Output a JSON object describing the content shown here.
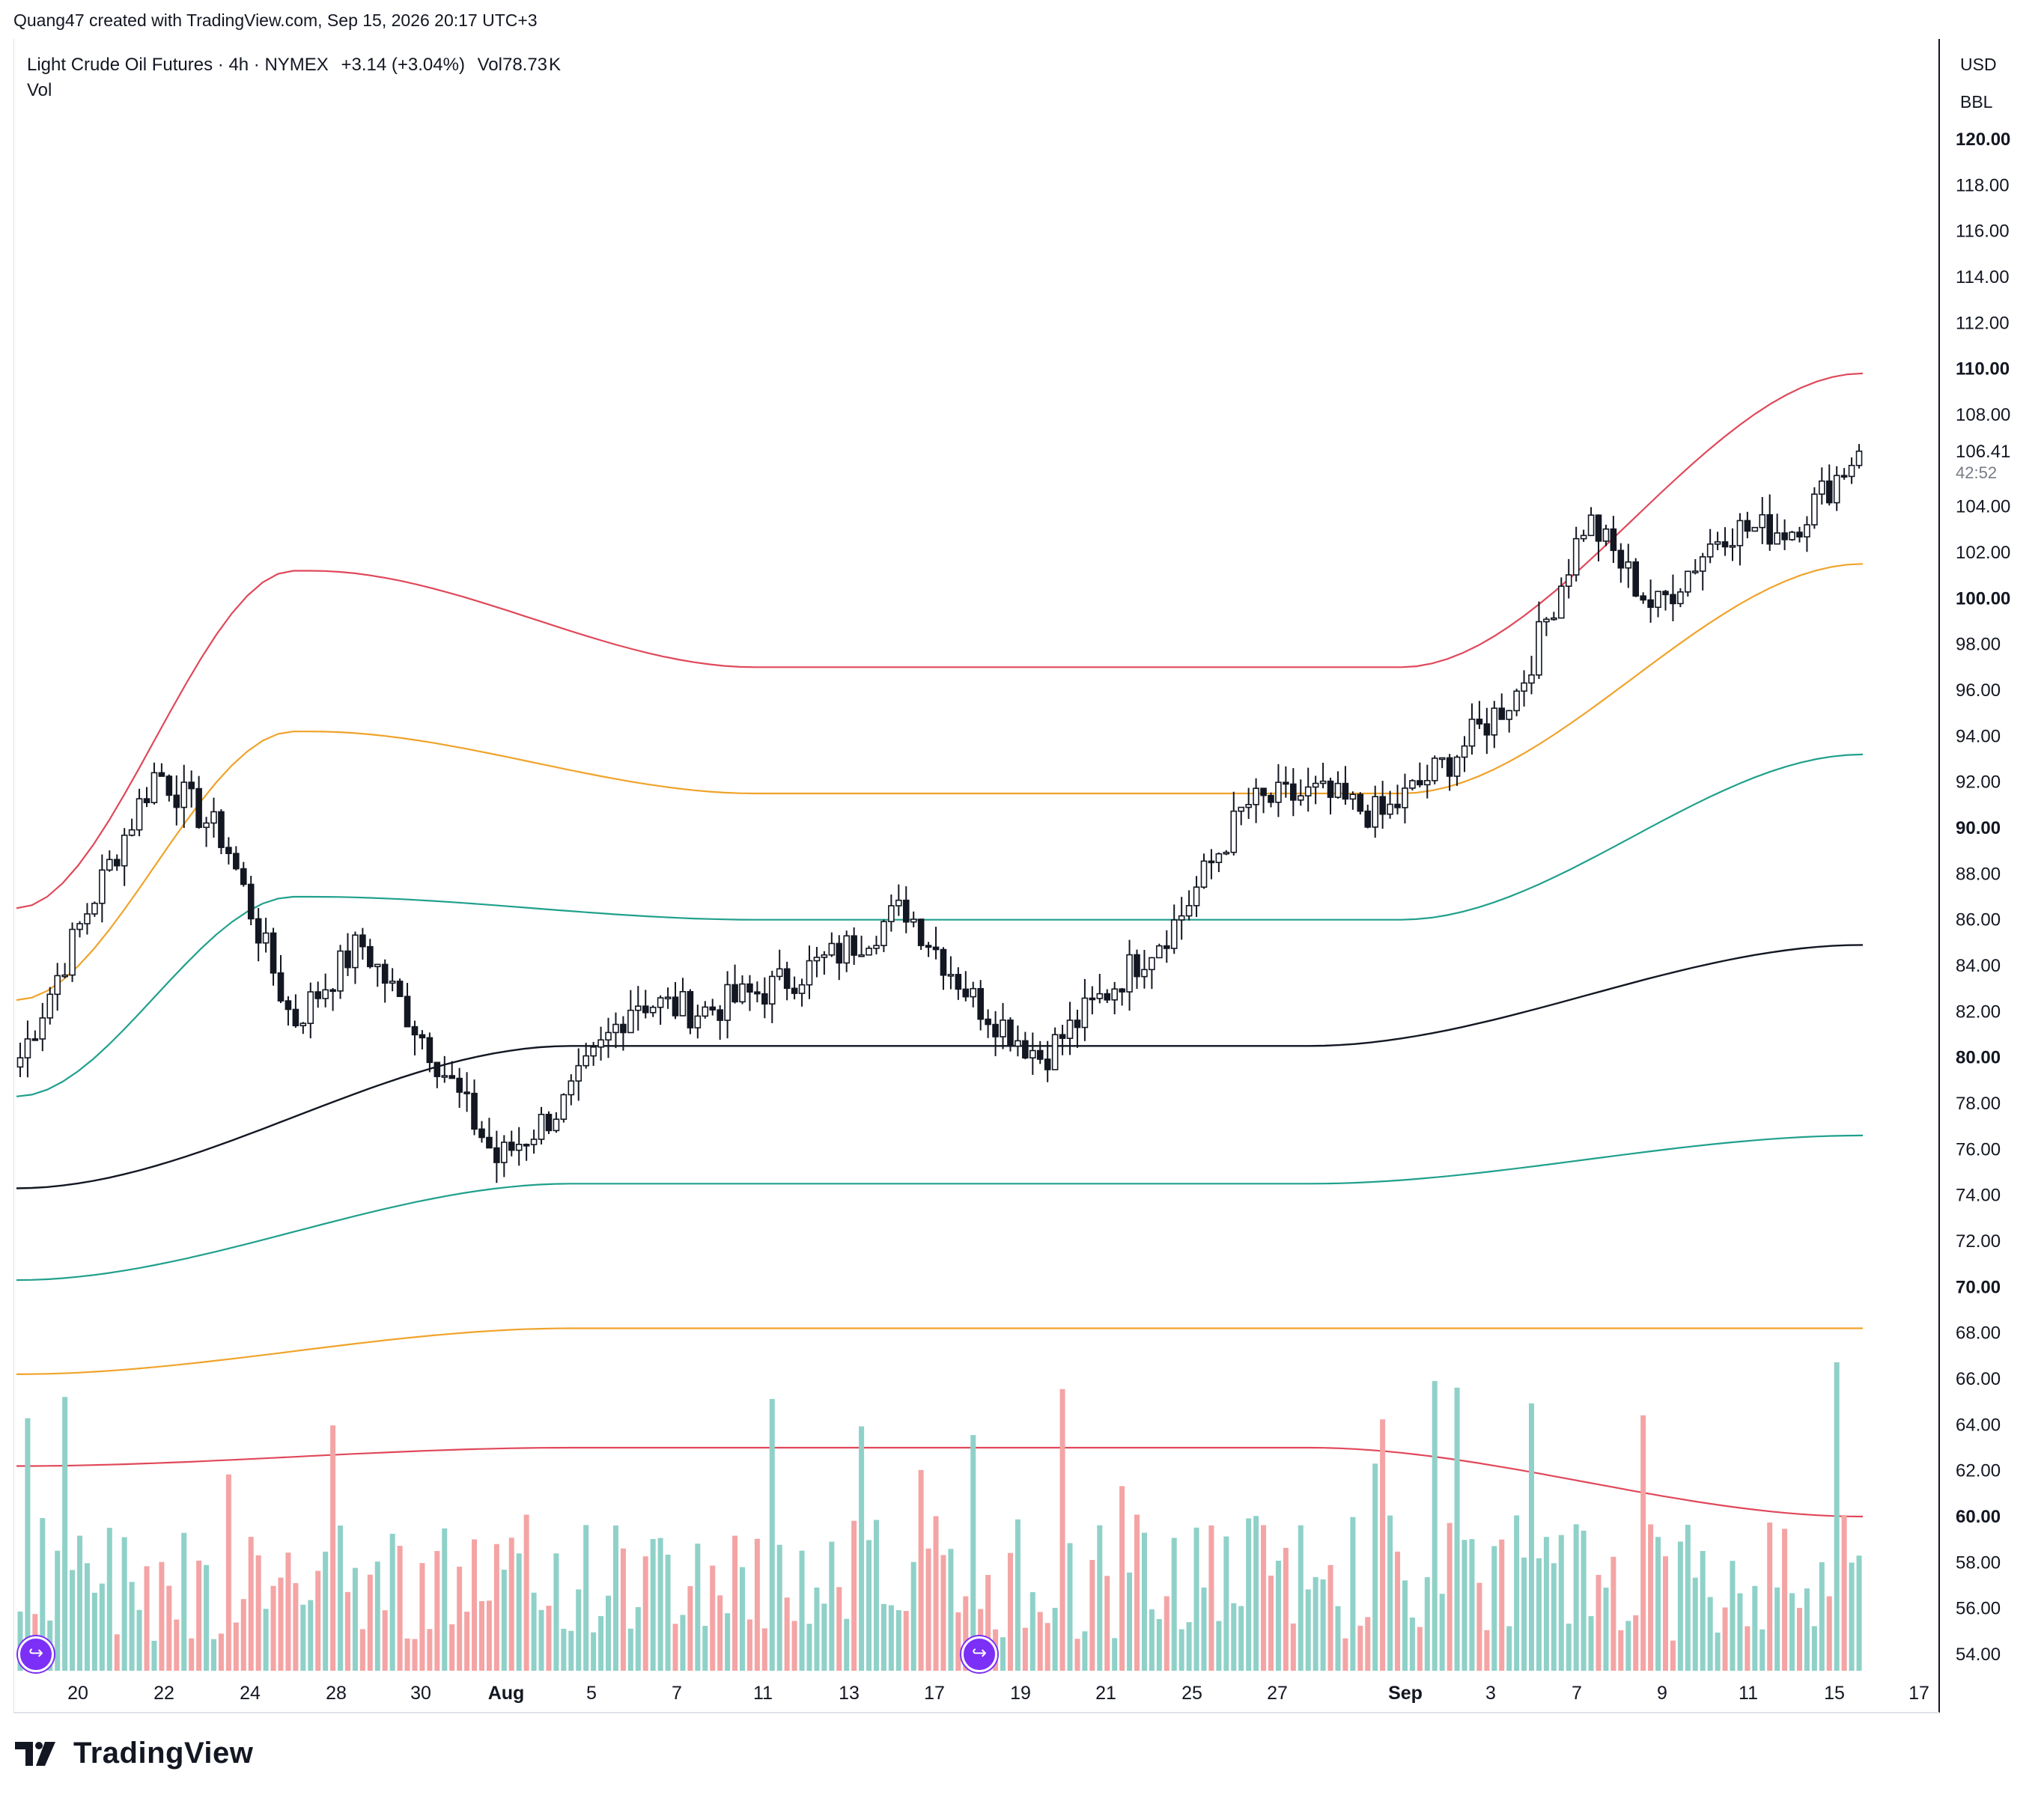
{
  "header": {
    "credit": "Quang47 created with TradingView.com, Sep 15, 2026 20:17 UTC+3"
  },
  "legend": {
    "symbol": "Light Crude Oil Futures · 4h · NYMEX",
    "change": "+3.14 (+3.04%)",
    "volume_label": "Vol78.73",
    "volume_unit": "K",
    "vol_indicator": "Vol"
  },
  "axis_units": {
    "currency": "USD",
    "unit": "BBL"
  },
  "price_tag": {
    "value": "106.41",
    "countdown": "42:52"
  },
  "brand": {
    "name": "TradingView"
  },
  "colors": {
    "up_candle": "#ffffff",
    "down_candle": "#131722",
    "vol_up": "#8fd1c8",
    "vol_down": "#f4a4a4",
    "band_red": "#e0485a",
    "band_orange": "#f0a32a",
    "band_teal": "#20a08c",
    "basis": "#131722",
    "event_icon": "#7b2ff7"
  },
  "chart_data": {
    "type": "candlestick",
    "y_axis": {
      "ticks": [
        "120.00",
        "118.00",
        "116.00",
        "114.00",
        "112.00",
        "110.00",
        "108.00",
        "106.41",
        "104.00",
        "102.00",
        "100.00",
        "98.00",
        "96.00",
        "94.00",
        "92.00",
        "90.00",
        "88.00",
        "86.00",
        "84.00",
        "82.00",
        "80.00",
        "78.00",
        "76.00",
        "74.00",
        "72.00",
        "70.00",
        "68.00",
        "66.00",
        "64.00",
        "62.00",
        "60.00",
        "58.00",
        "56.00",
        "54.00"
      ],
      "bold_ticks": [
        "120.00",
        "110.00",
        "100.00",
        "90.00",
        "80.00",
        "70.00",
        "60.00"
      ],
      "range": [
        53.5,
        122
      ]
    },
    "x_axis": {
      "ticks": [
        "20",
        "22",
        "24",
        "28",
        "30",
        "Aug",
        "5",
        "7",
        "11",
        "13",
        "17",
        "19",
        "21",
        "25",
        "27",
        "Sep",
        "3",
        "7",
        "9",
        "11",
        "15",
        "17"
      ],
      "bold_ticks": [
        "Aug",
        "Sep"
      ]
    },
    "anchors": [
      {
        "label": "start",
        "close": 80.0
      },
      {
        "label": "22",
        "close": 86.5
      },
      {
        "label": "24",
        "close": 92.5
      },
      {
        "label": "25",
        "close": 89.5
      },
      {
        "label": "28",
        "close": 81.5
      },
      {
        "label": "30",
        "close": 85.0
      },
      {
        "label": "Aug",
        "close": 80.5
      },
      {
        "label": "5",
        "close": 75.5
      },
      {
        "label": "7",
        "close": 78.0
      },
      {
        "label": "11",
        "close": 82.5
      },
      {
        "label": "13",
        "close": 82.0
      },
      {
        "label": "17",
        "close": 83.0
      },
      {
        "label": "19",
        "close": 84.5
      },
      {
        "label": "21",
        "close": 86.5
      },
      {
        "label": "25",
        "close": 82.5
      },
      {
        "label": "26",
        "close": 80.0
      },
      {
        "label": "27",
        "close": 83.0
      },
      {
        "label": "Sep",
        "close": 86.0
      },
      {
        "label": "2",
        "close": 91.0
      },
      {
        "label": "3",
        "close": 91.5
      },
      {
        "label": "7",
        "close": 90.5
      },
      {
        "label": "9",
        "close": 93.0
      },
      {
        "label": "10",
        "close": 96.0
      },
      {
        "label": "11",
        "close": 103.5
      },
      {
        "label": "12",
        "close": 99.5
      },
      {
        "label": "14",
        "close": 103.0
      },
      {
        "label": "15",
        "close": 103.0
      },
      {
        "label": "last",
        "close": 106.41
      }
    ],
    "bands": {
      "upper_outer_red": {
        "start": 86.5,
        "peak_near_24": 101.2,
        "flat_mid": 97.0,
        "end": 109.8
      },
      "upper_inner_orange": {
        "start": 82.5,
        "peak_near_24": 94.2,
        "flat_mid": 91.5,
        "end": 101.5
      },
      "upper_teal": {
        "start": 78.3,
        "peak_near_24": 87.0,
        "flat_mid": 86.0,
        "end": 93.2
      },
      "basis_black": {
        "start": 74.3,
        "mid": 80.5,
        "end": 84.9
      },
      "lower_teal": {
        "start": 70.3,
        "mid": 74.5,
        "end": 76.6
      },
      "lower_orange": {
        "start": 66.2,
        "mid": 68.2,
        "end": 68.2
      },
      "lower_red": {
        "start": 62.2,
        "mid": 63.0,
        "end": 60.0
      }
    },
    "last_price": 106.41
  }
}
